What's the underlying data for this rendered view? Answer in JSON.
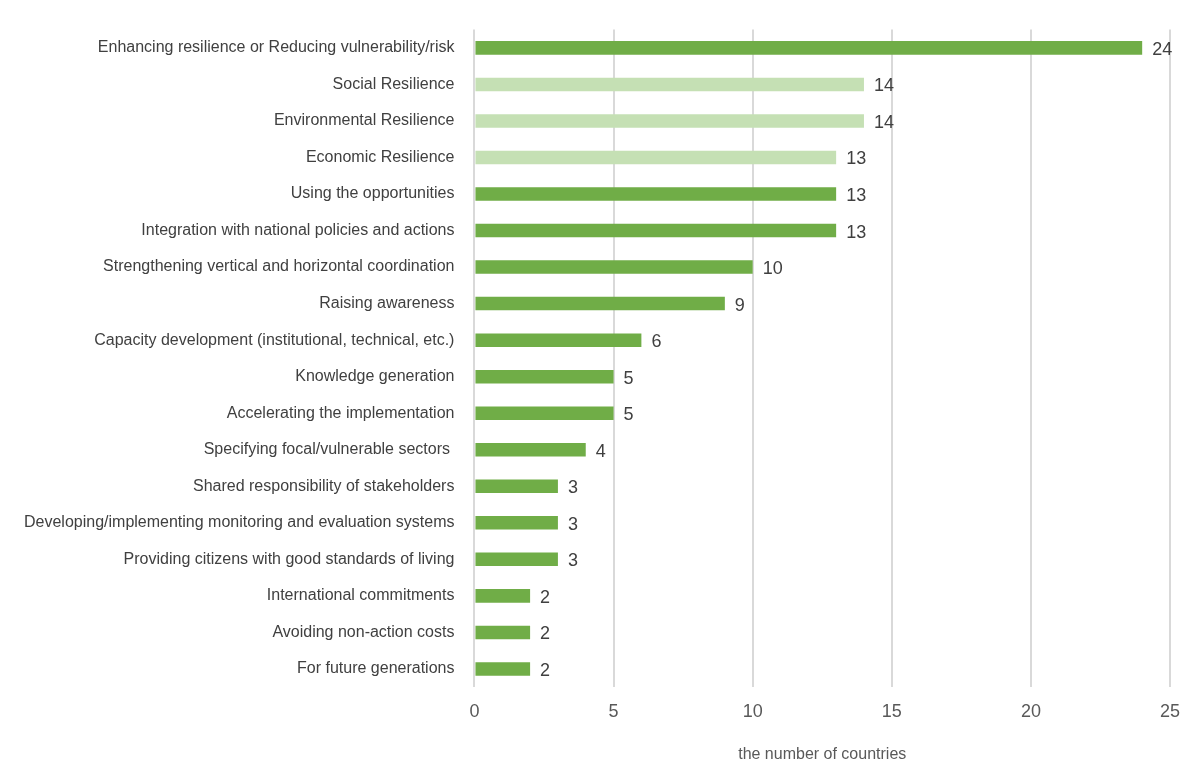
{
  "chart_data": {
    "type": "bar",
    "orientation": "horizontal",
    "xlabel": "the number of countries",
    "categories": [
      "Enhancing resilience or Reducing vulnerability/risk",
      "Social Resilience",
      "Environmental Resilience",
      "Economic Resilience",
      "Using the opportunities",
      "Integration with national policies and actions",
      "Strengthening vertical and horizontal coordination",
      "Raising awareness",
      "Capacity development (institutional, technical, etc.)",
      "Knowledge generation",
      "Accelerating the implementation",
      "Specifying focal/vulnerable sectors ",
      "Shared responsibility of stakeholders",
      "Developing/implementing monitoring and evaluation systems",
      "Providing citizens with good standards of living",
      "International commitments",
      "Avoiding non-action costs",
      "For future generations"
    ],
    "values": [
      24,
      14,
      14,
      13,
      13,
      13,
      10,
      9,
      6,
      5,
      5,
      4,
      3,
      3,
      3,
      2,
      2,
      2
    ],
    "colors": [
      "#70ad47",
      "#c5e0b4",
      "#c5e0b4",
      "#c5e0b4",
      "#70ad47",
      "#70ad47",
      "#70ad47",
      "#70ad47",
      "#70ad47",
      "#70ad47",
      "#70ad47",
      "#70ad47",
      "#70ad47",
      "#70ad47",
      "#70ad47",
      "#70ad47",
      "#70ad47",
      "#70ad47"
    ],
    "xlim": [
      0,
      25
    ],
    "xticks": [
      0,
      5,
      10,
      15,
      20,
      25
    ],
    "grid": "x",
    "legend": false,
    "data_labels": true
  }
}
